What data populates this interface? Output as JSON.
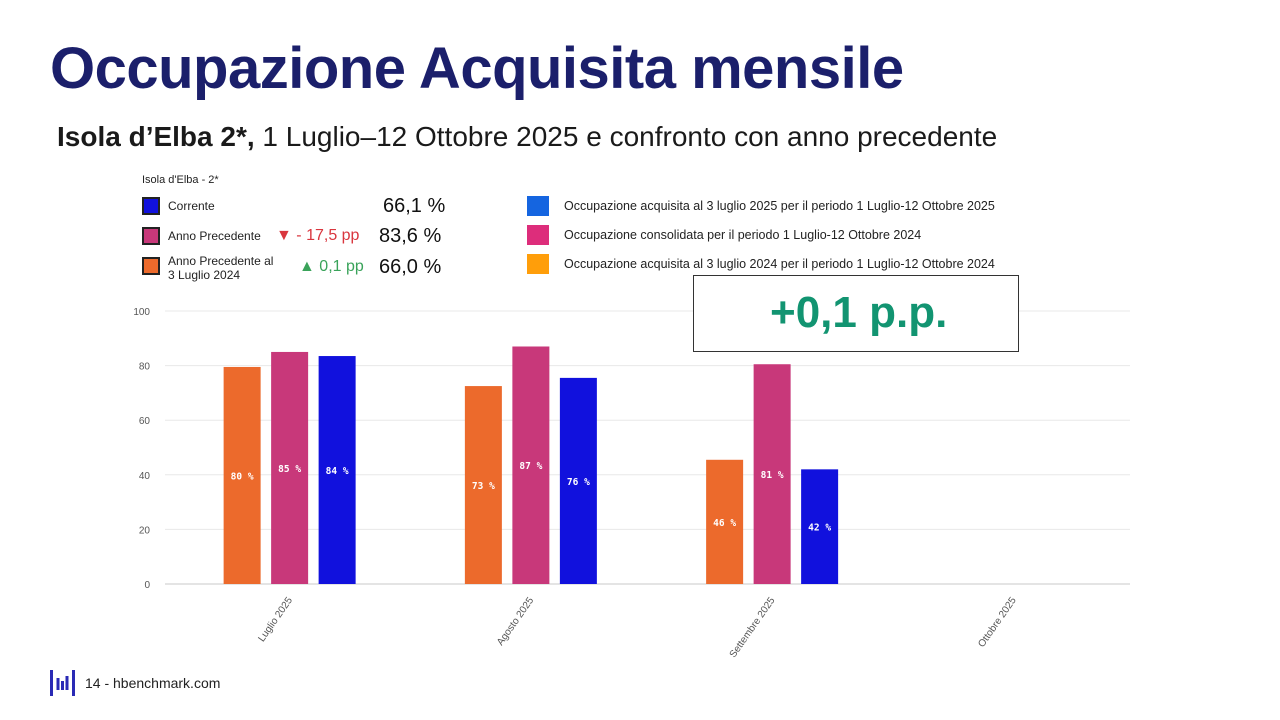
{
  "slide": {
    "title": "Occupazione Acquisita mensile",
    "subtitle_bold": "Isola d’Elba 2*,",
    "subtitle_rest": " 1 Luglio–12 Ottobre 2025 e confronto con anno precedente",
    "callout": "+0,1 p.p.",
    "footer": "14 - hbenchmark.com"
  },
  "summary": {
    "panel_title": "Isola d'Elba - 2*",
    "rows": [
      {
        "label": "Corrente",
        "value": "66,1 %",
        "delta": "",
        "color": "#1111dd"
      },
      {
        "label": "Anno Precedente",
        "value": "83,6 %",
        "delta": "- 17,5 pp",
        "delta_dir": "down",
        "color": "#c8387a"
      },
      {
        "label": "Anno Precedente al\n3 Luglio 2024",
        "value": "66,0 %",
        "delta": "0,1 pp",
        "delta_dir": "up",
        "color": "#ec6a2c"
      }
    ]
  },
  "legend": [
    {
      "label": "Occupazione acquisita al 3 luglio 2025 per il periodo 1 Luglio-12 Ottobre 2025",
      "color": "#1565e0"
    },
    {
      "label": "Occupazione consolidata per il periodo 1 Luglio-12 Ottobre 2024",
      "color": "#dd2d7b"
    },
    {
      "label": "Occupazione acquisita al 3 luglio 2024 per il periodo 1 Luglio-12 Ottobre 2024",
      "color": "#ff9e0a"
    }
  ],
  "chart_data": {
    "type": "bar",
    "categories": [
      "Luglio 2025",
      "Agosto 2025",
      "Settembre 2025",
      "Ottobre 2025"
    ],
    "series": [
      {
        "values": [
          79.5,
          72.5,
          45.5,
          null
        ],
        "labels": [
          "80 %",
          "73 %",
          "46 %",
          ""
        ],
        "color": "#ec6a2c"
      },
      {
        "values": [
          85,
          87,
          80.5,
          null
        ],
        "labels": [
          "85 %",
          "87 %",
          "81 %",
          ""
        ],
        "color": "#c8387a"
      },
      {
        "values": [
          83.5,
          75.5,
          42,
          null
        ],
        "labels": [
          "84 %",
          "76 %",
          "42 %",
          ""
        ],
        "color": "#1111dd"
      }
    ],
    "yticks": [
      0,
      20,
      40,
      60,
      80,
      100
    ],
    "ylim": [
      0,
      100
    ],
    "grid": true
  }
}
